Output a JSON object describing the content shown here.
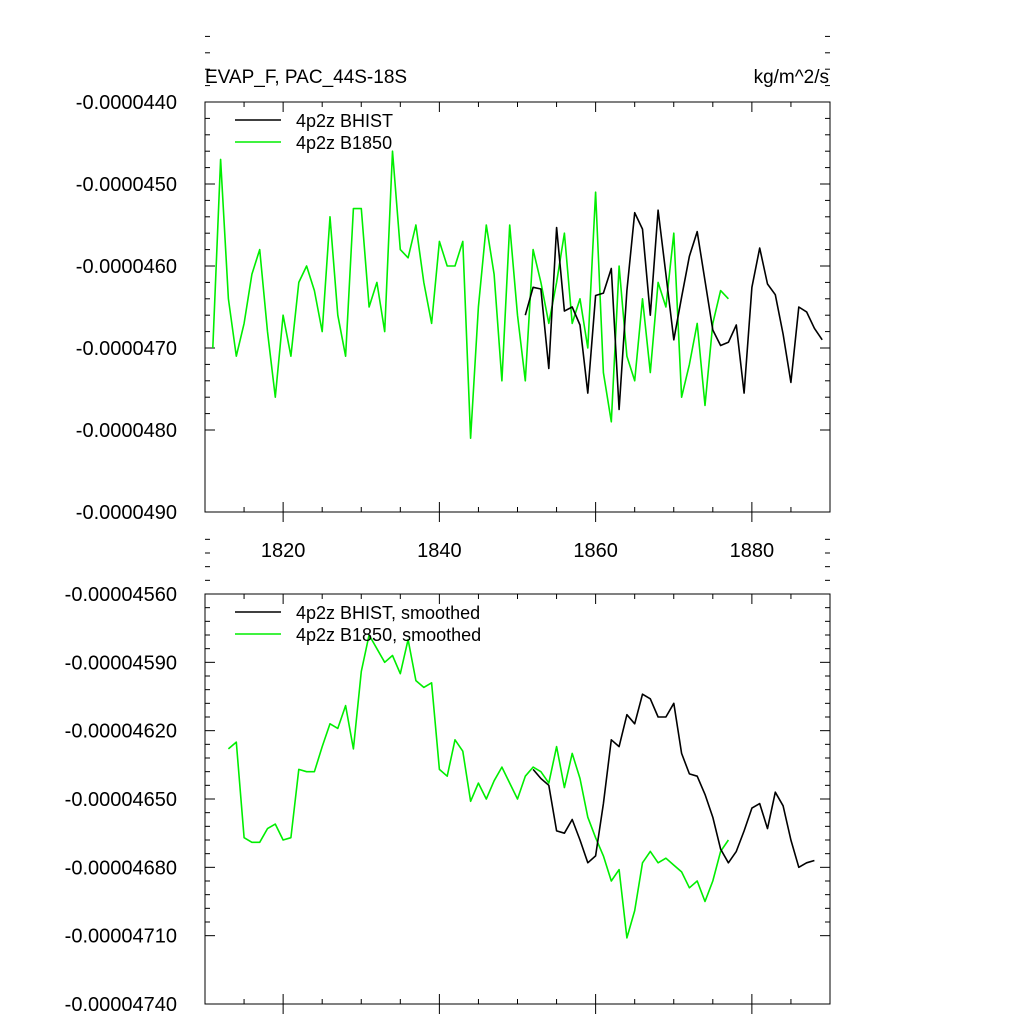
{
  "colors": {
    "series_black": "#000000",
    "series_green": "#00ee00",
    "background": "#ffffff"
  },
  "chart_data": [
    {
      "type": "line",
      "title_left": "EVAP_F, PAC_44S-18S",
      "title_right": "kg/m^2/s",
      "xlim": [
        1810,
        1890
      ],
      "ylim": [
        -4.9e-05,
        -4.4e-05
      ],
      "xticks": [
        1820,
        1840,
        1860,
        1880
      ],
      "xtick_labels": [
        "1820",
        "1840",
        "1860",
        "1880"
      ],
      "yticks": [
        -4.4e-05,
        -4.5e-05,
        -4.6e-05,
        -4.7e-05,
        -4.8e-05,
        -4.9e-05
      ],
      "ytick_labels": [
        "-0.0000440",
        "-0.0000450",
        "-0.0000460",
        "-0.0000470",
        "-0.0000480",
        "-0.0000490"
      ],
      "grid": false,
      "legend": "top-left",
      "series": [
        {
          "name": "4p2z BHIST",
          "color": "#000000",
          "x": [
            1851,
            1852,
            1853,
            1854,
            1855,
            1856,
            1857,
            1858,
            1859,
            1860,
            1861,
            1862,
            1863,
            1864,
            1865,
            1866,
            1867,
            1868,
            1869,
            1870,
            1871,
            1872,
            1873,
            1874,
            1875,
            1876,
            1877,
            1878,
            1879,
            1880,
            1881,
            1882,
            1883,
            1884,
            1885,
            1886,
            1887,
            1888,
            1889
          ],
          "y": [
            -4.66e-05,
            -4.626e-05,
            -4.628e-05,
            -4.725e-05,
            -4.553e-05,
            -4.655e-05,
            -4.65e-05,
            -4.672e-05,
            -4.755e-05,
            -4.636e-05,
            -4.633e-05,
            -4.603e-05,
            -4.775e-05,
            -4.63e-05,
            -4.535e-05,
            -4.555e-05,
            -4.66e-05,
            -4.532e-05,
            -4.61e-05,
            -4.69e-05,
            -4.638e-05,
            -4.588e-05,
            -4.558e-05,
            -4.618e-05,
            -4.678e-05,
            -4.697e-05,
            -4.693e-05,
            -4.672e-05,
            -4.755e-05,
            -4.626e-05,
            -4.578e-05,
            -4.622e-05,
            -4.635e-05,
            -4.683e-05,
            -4.742e-05,
            -4.65e-05,
            -4.656e-05,
            -4.676e-05,
            -4.69e-05
          ]
        },
        {
          "name": "4p2z B1850",
          "color": "#00ee00",
          "x": [
            1811,
            1812,
            1813,
            1814,
            1815,
            1816,
            1817,
            1818,
            1819,
            1820,
            1821,
            1822,
            1823,
            1824,
            1825,
            1826,
            1827,
            1828,
            1829,
            1830,
            1831,
            1832,
            1833,
            1834,
            1835,
            1836,
            1837,
            1838,
            1839,
            1840,
            1841,
            1842,
            1843,
            1844,
            1845,
            1846,
            1847,
            1848,
            1849,
            1850,
            1851,
            1852,
            1853,
            1854,
            1855,
            1856,
            1857,
            1858,
            1859,
            1860,
            1861,
            1862,
            1863,
            1864,
            1865,
            1866,
            1867,
            1868,
            1869,
            1870,
            1871,
            1872,
            1873,
            1874,
            1875,
            1876,
            1877
          ],
          "y": [
            -4.7e-05,
            -4.47e-05,
            -4.64e-05,
            -4.71e-05,
            -4.67e-05,
            -4.61e-05,
            -4.58e-05,
            -4.68e-05,
            -4.76e-05,
            -4.66e-05,
            -4.71e-05,
            -4.62e-05,
            -4.6e-05,
            -4.63e-05,
            -4.68e-05,
            -4.54e-05,
            -4.66e-05,
            -4.71e-05,
            -4.53e-05,
            -4.53e-05,
            -4.65e-05,
            -4.62e-05,
            -4.68e-05,
            -4.46e-05,
            -4.58e-05,
            -4.59e-05,
            -4.55e-05,
            -4.62e-05,
            -4.67e-05,
            -4.57e-05,
            -4.6e-05,
            -4.6e-05,
            -4.57e-05,
            -4.81e-05,
            -4.65e-05,
            -4.55e-05,
            -4.61e-05,
            -4.74e-05,
            -4.55e-05,
            -4.66e-05,
            -4.74e-05,
            -4.58e-05,
            -4.62e-05,
            -4.67e-05,
            -4.62e-05,
            -4.56e-05,
            -4.67e-05,
            -4.64e-05,
            -4.7e-05,
            -4.51e-05,
            -4.73e-05,
            -4.79e-05,
            -4.6e-05,
            -4.71e-05,
            -4.74e-05,
            -4.64e-05,
            -4.73e-05,
            -4.62e-05,
            -4.65e-05,
            -4.56e-05,
            -4.76e-05,
            -4.72e-05,
            -4.67e-05,
            -4.77e-05,
            -4.67e-05,
            -4.63e-05,
            -4.64e-05
          ]
        }
      ]
    },
    {
      "type": "line",
      "xlim": [
        1810,
        1890
      ],
      "ylim": [
        -4.74e-05,
        -4.56e-05
      ],
      "xticks": [
        1820,
        1840,
        1860,
        1880
      ],
      "yticks": [
        -4.56e-05,
        -4.59e-05,
        -4.62e-05,
        -4.65e-05,
        -4.68e-05,
        -4.71e-05,
        -4.74e-05
      ],
      "ytick_labels": [
        "-0.00004560",
        "-0.00004590",
        "-0.00004620",
        "-0.00004650",
        "-0.00004680",
        "-0.00004710",
        "-0.00004740"
      ],
      "grid": false,
      "legend": "top-left",
      "series": [
        {
          "name": "4p2z BHIST, smoothed",
          "color": "#000000",
          "x": [
            1852,
            1853,
            1854,
            1855,
            1856,
            1857,
            1858,
            1859,
            1860,
            1861,
            1862,
            1863,
            1864,
            1865,
            1866,
            1867,
            1868,
            1869,
            1870,
            1871,
            1872,
            1873,
            1874,
            1875,
            1876,
            1877,
            1878,
            1879,
            1880,
            1881,
            1882,
            1883,
            1884,
            1885,
            1886,
            1887,
            1888
          ],
          "y": [
            -4.637e-05,
            -4.641e-05,
            -4.644e-05,
            -4.664e-05,
            -4.665e-05,
            -4.659e-05,
            -4.668e-05,
            -4.678e-05,
            -4.675e-05,
            -4.652e-05,
            -4.624e-05,
            -4.627e-05,
            -4.613e-05,
            -4.617e-05,
            -4.604e-05,
            -4.606e-05,
            -4.614e-05,
            -4.614e-05,
            -4.608e-05,
            -4.63e-05,
            -4.639e-05,
            -4.64e-05,
            -4.648e-05,
            -4.658e-05,
            -4.672e-05,
            -4.678e-05,
            -4.673e-05,
            -4.664e-05,
            -4.654e-05,
            -4.652e-05,
            -4.663e-05,
            -4.647e-05,
            -4.653e-05,
            -4.668e-05,
            -4.68e-05,
            -4.678e-05,
            -4.677e-05
          ]
        },
        {
          "name": "4p2z B1850, smoothed",
          "color": "#00ee00",
          "x": [
            1813,
            1814,
            1815,
            1816,
            1817,
            1818,
            1819,
            1820,
            1821,
            1822,
            1823,
            1824,
            1825,
            1826,
            1827,
            1828,
            1829,
            1830,
            1831,
            1832,
            1833,
            1834,
            1835,
            1836,
            1837,
            1838,
            1839,
            1840,
            1841,
            1842,
            1843,
            1844,
            1845,
            1846,
            1847,
            1848,
            1849,
            1850,
            1851,
            1852,
            1853,
            1854,
            1855,
            1856,
            1857,
            1858,
            1859,
            1860,
            1861,
            1862,
            1863,
            1864,
            1865,
            1866,
            1867,
            1868,
            1869,
            1870,
            1871,
            1872,
            1873,
            1874,
            1875,
            1876,
            1877
          ],
          "y": [
            -4.628e-05,
            -4.625e-05,
            -4.667e-05,
            -4.669e-05,
            -4.669e-05,
            -4.663e-05,
            -4.661e-05,
            -4.668e-05,
            -4.667e-05,
            -4.637e-05,
            -4.638e-05,
            -4.638e-05,
            -4.627e-05,
            -4.617e-05,
            -4.619e-05,
            -4.609e-05,
            -4.628e-05,
            -4.594e-05,
            -4.578e-05,
            -4.584e-05,
            -4.59e-05,
            -4.587e-05,
            -4.595e-05,
            -4.58e-05,
            -4.598e-05,
            -4.601e-05,
            -4.599e-05,
            -4.637e-05,
            -4.64e-05,
            -4.624e-05,
            -4.629e-05,
            -4.651e-05,
            -4.643e-05,
            -4.65e-05,
            -4.642e-05,
            -4.636e-05,
            -4.643e-05,
            -4.65e-05,
            -4.64e-05,
            -4.636e-05,
            -4.638e-05,
            -4.643e-05,
            -4.627e-05,
            -4.645e-05,
            -4.63e-05,
            -4.641e-05,
            -4.658e-05,
            -4.667e-05,
            -4.675e-05,
            -4.686e-05,
            -4.681e-05,
            -4.711e-05,
            -4.699e-05,
            -4.678e-05,
            -4.673e-05,
            -4.678e-05,
            -4.676e-05,
            -4.679e-05,
            -4.682e-05,
            -4.689e-05,
            -4.686e-05,
            -4.695e-05,
            -4.686e-05,
            -4.673e-05,
            -4.668e-05
          ]
        }
      ]
    }
  ]
}
